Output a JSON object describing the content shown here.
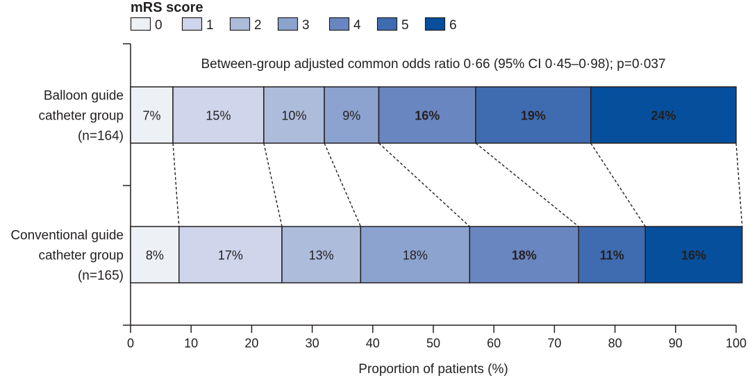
{
  "chart_data": {
    "type": "stacked-horizontal-bar",
    "legend": {
      "title": "mRS score",
      "placement": "top-left",
      "entries": [
        "0",
        "1",
        "2",
        "3",
        "4",
        "5",
        "6"
      ]
    },
    "colors": [
      "#edf1f6",
      "#cfd5ea",
      "#aebcdc",
      "#8ca3cf",
      "#6a86c0",
      "#3f6cb1",
      "#064f9c"
    ],
    "label_colors": [
      "#231f20",
      "#231f20",
      "#231f20",
      "#231f20",
      "#ffffff",
      "#ffffff",
      "#ffffff"
    ],
    "annotation": "Between-group adjusted common odds ratio 0·66 (95% CI 0·45–0·98); p=0·037",
    "groups": [
      {
        "label_lines": [
          "Balloon guide",
          "catheter group",
          "(n=164)"
        ],
        "values": [
          7,
          15,
          10,
          9,
          16,
          19,
          24
        ],
        "labels": [
          "7%",
          "15%",
          "10%",
          "9%",
          "16%",
          "19%",
          "24%"
        ]
      },
      {
        "label_lines": [
          "Conventional guide",
          "catheter group",
          "(n=165)"
        ],
        "values": [
          8,
          17,
          13,
          18,
          18,
          11,
          16
        ],
        "labels": [
          "8%",
          "17%",
          "13%",
          "18%",
          "18%",
          "11%",
          "16%"
        ]
      }
    ],
    "xlabel": "Proportion of patients (%)",
    "xlim": [
      0,
      100
    ],
    "xticks": [
      "0",
      "10",
      "20",
      "30",
      "40",
      "50",
      "60",
      "70",
      "80",
      "90",
      "100"
    ],
    "grid": false
  }
}
